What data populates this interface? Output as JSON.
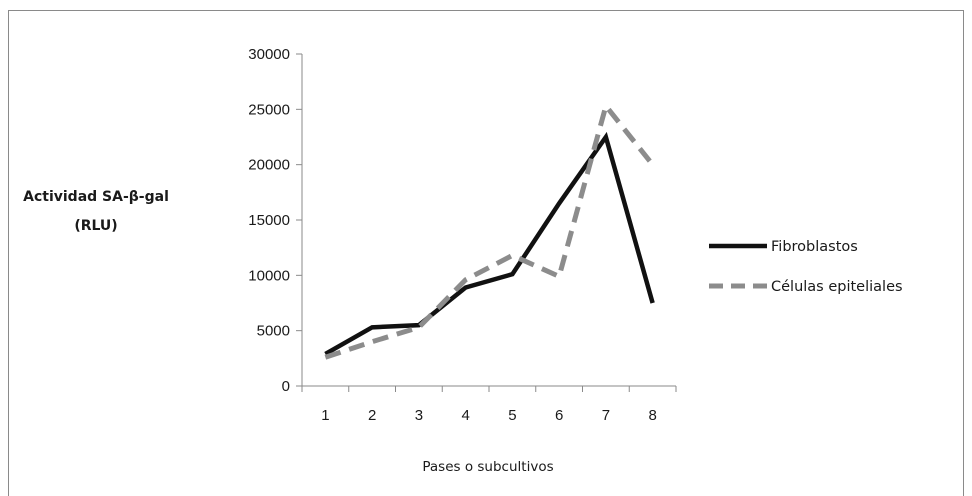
{
  "chart_data": {
    "type": "line",
    "ylabel_lines": [
      "Actividad SA-β-gal",
      "(RLU)"
    ],
    "xlabel": "Pases o subcultivos",
    "categories": [
      "1",
      "2",
      "3",
      "4",
      "5",
      "6",
      "7",
      "8"
    ],
    "ylim": [
      0,
      30000
    ],
    "yticks": [
      0,
      5000,
      10000,
      15000,
      20000,
      25000,
      30000
    ],
    "yticks_labels": [
      "0",
      "5000",
      "10000",
      "15000",
      "20000",
      "25000",
      "30000"
    ],
    "grid": false,
    "legend_position": "right",
    "series": [
      {
        "name": "Fibroblastos",
        "values": [
          2900,
          5300,
          5500,
          8900,
          10100,
          16500,
          22500,
          7500
        ],
        "color": "#111111",
        "style": "solid"
      },
      {
        "name": "Células epiteliales",
        "values": [
          2600,
          4000,
          5300,
          9600,
          11800,
          9900,
          25300,
          20000
        ],
        "color": "#8c8c8c",
        "style": "dashed"
      }
    ]
  }
}
